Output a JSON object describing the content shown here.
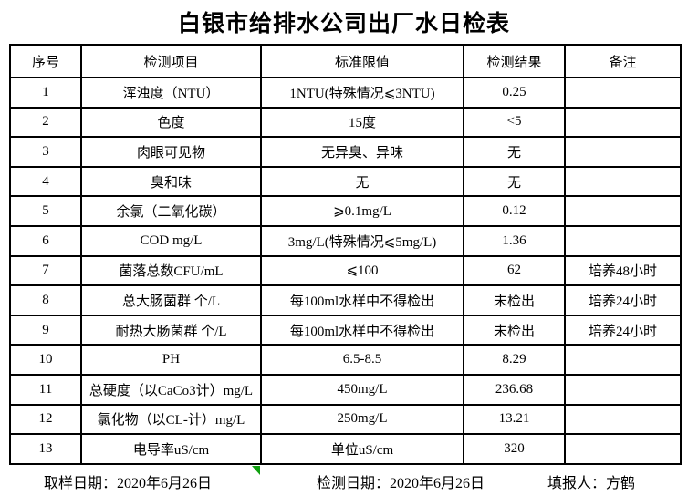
{
  "title": "白银市给排水公司出厂水日检表",
  "colors": {
    "marker_green": "#10a010",
    "border": "#000000",
    "background": "#ffffff",
    "text": "#000000"
  },
  "table": {
    "headers": [
      "序号",
      "检测项目",
      "标准限值",
      "检测结果",
      "备注"
    ],
    "rows": [
      {
        "no": "1",
        "item": "浑浊度（NTU）",
        "limit": "1NTU(特殊情况⩽3NTU)",
        "result": "0.25",
        "remark": ""
      },
      {
        "no": "2",
        "item": "色度",
        "limit": "15度",
        "result": "<5",
        "remark": ""
      },
      {
        "no": "3",
        "item": "肉眼可见物",
        "limit": "无异臭、异味",
        "result": "无",
        "remark": ""
      },
      {
        "no": "4",
        "item": "臭和味",
        "limit": "无",
        "result": "无",
        "remark": ""
      },
      {
        "no": "5",
        "item": "余氯（二氧化碳）",
        "limit": "⩾0.1mg/L",
        "result": "0.12",
        "remark": ""
      },
      {
        "no": "6",
        "item": "COD            mg/L",
        "limit": "3mg/L(特殊情况⩽5mg/L)",
        "result": "1.36",
        "remark": ""
      },
      {
        "no": "7",
        "item": "菌落总数CFU/mL",
        "limit": "⩽100",
        "result": "62",
        "remark": "培养48小时"
      },
      {
        "no": "8",
        "item": "总大肠菌群 个/L",
        "limit": "每100ml水样中不得检出",
        "result": "未检出",
        "remark": "培养24小时"
      },
      {
        "no": "9",
        "item": "耐热大肠菌群 个/L",
        "limit": "每100ml水样中不得检出",
        "result": "未检出",
        "remark": "培养24小时"
      },
      {
        "no": "10",
        "item": "PH",
        "limit": "6.5-8.5",
        "result": "8.29",
        "remark": ""
      },
      {
        "no": "11",
        "item": "总硬度（以CaCo3计）mg/L",
        "limit": "450mg/L",
        "result": "236.68",
        "remark": ""
      },
      {
        "no": "12",
        "item": "氯化物（以CL-计）mg/L",
        "limit": "250mg/L",
        "result": "13.21",
        "remark": ""
      },
      {
        "no": "13",
        "item": "电导率uS/cm",
        "limit": "单位uS/cm",
        "result": "320",
        "remark": ""
      }
    ]
  },
  "footer": {
    "sampling_label": "取样日期：",
    "sampling_value": "2020年6月26日",
    "testing_label": "检测日期：",
    "testing_value": "2020年6月26日",
    "reporter_label": "填报人：",
    "reporter_value": "方鹤"
  }
}
